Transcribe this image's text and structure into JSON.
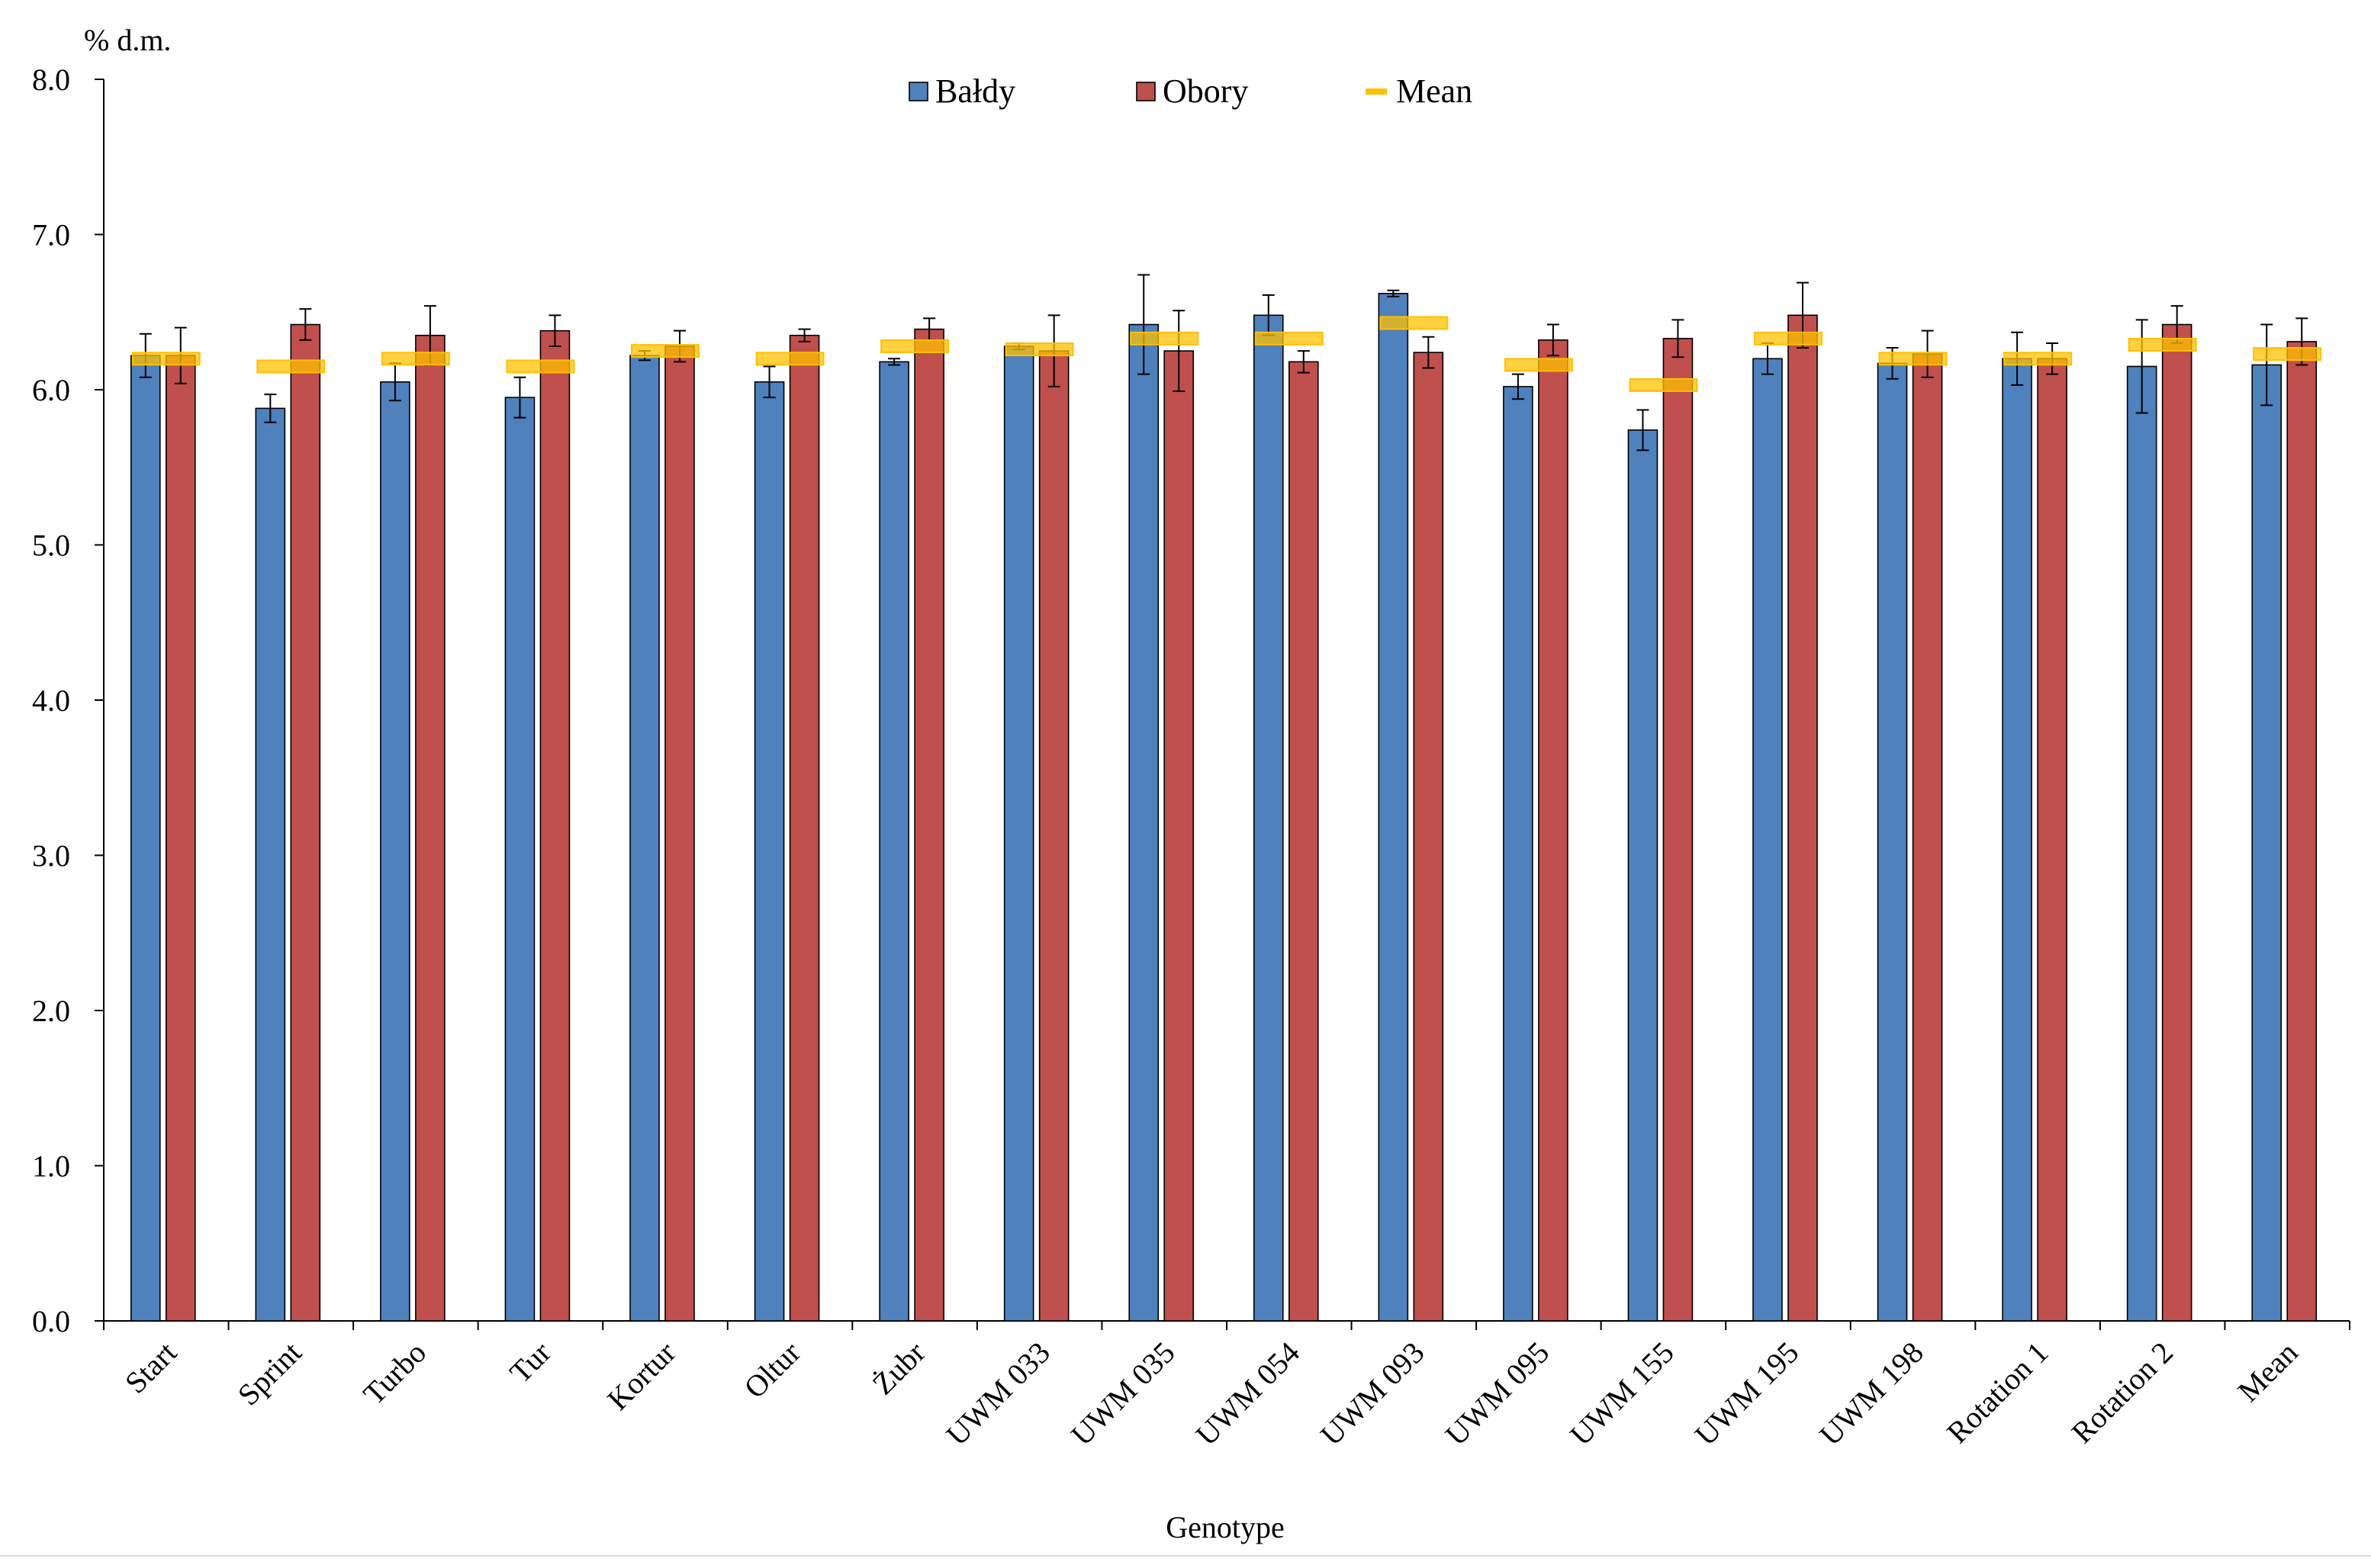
{
  "chart_data": {
    "type": "bar",
    "y_label": "% d.m.",
    "x_label": "Genotype",
    "categories": [
      "Start",
      "Sprint",
      "Turbo",
      "Tur",
      "Kortur",
      "Oltur",
      "Żubr",
      "UWM 033",
      "UWM 035",
      "UWM 054",
      "UWM 093",
      "UWM 095",
      "UWM 155",
      "UWM 195",
      "UWM 198",
      "Rotation 1",
      "Rotation 2",
      "Mean"
    ],
    "series": [
      {
        "name": "Bałdy",
        "color": "#4f81bd",
        "values": [
          6.22,
          5.88,
          6.05,
          5.95,
          6.22,
          6.05,
          6.18,
          6.28,
          6.42,
          6.48,
          6.62,
          6.02,
          5.74,
          6.2,
          6.17,
          6.2,
          6.15,
          6.16
        ],
        "errors": [
          0.14,
          0.09,
          0.12,
          0.13,
          0.03,
          0.1,
          0.02,
          0.02,
          0.32,
          0.13,
          0.02,
          0.08,
          0.13,
          0.1,
          0.1,
          0.17,
          0.3,
          0.26
        ]
      },
      {
        "name": "Obory",
        "color": "#c0504d",
        "values": [
          6.22,
          6.42,
          6.35,
          6.38,
          6.28,
          6.35,
          6.39,
          6.25,
          6.25,
          6.18,
          6.24,
          6.32,
          6.33,
          6.48,
          6.23,
          6.2,
          6.42,
          6.31
        ],
        "errors": [
          0.18,
          0.1,
          0.19,
          0.1,
          0.1,
          0.04,
          0.07,
          0.23,
          0.26,
          0.07,
          0.1,
          0.1,
          0.12,
          0.21,
          0.15,
          0.1,
          0.12,
          0.15
        ]
      },
      {
        "name": "Mean",
        "color": "#ffc000",
        "style": "dash",
        "values": [
          6.2,
          6.15,
          6.2,
          6.15,
          6.25,
          6.2,
          6.28,
          6.26,
          6.33,
          6.33,
          6.43,
          6.16,
          6.03,
          6.33,
          6.2,
          6.2,
          6.29,
          6.23
        ]
      }
    ],
    "ylim": [
      0,
      8
    ],
    "yticks": [
      {
        "value": 0,
        "label": "0.0"
      },
      {
        "value": 1,
        "label": "1.0"
      },
      {
        "value": 2,
        "label": "2.0"
      },
      {
        "value": 3,
        "label": "3.0"
      },
      {
        "value": 4,
        "label": "4.0"
      },
      {
        "value": 5,
        "label": "5.0"
      },
      {
        "value": 6,
        "label": "6.0"
      },
      {
        "value": 7,
        "label": "7.0"
      },
      {
        "value": 8,
        "label": "8.0"
      }
    ],
    "legend": "top"
  }
}
